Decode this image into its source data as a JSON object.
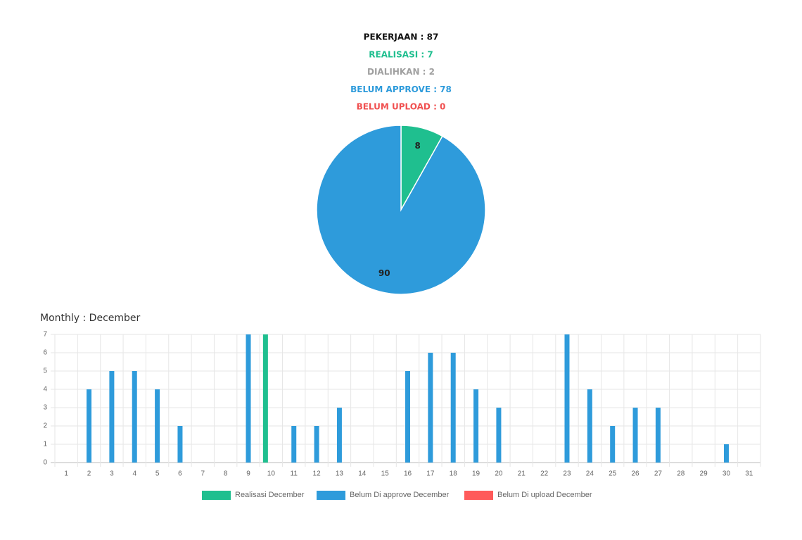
{
  "header": {
    "lines": [
      {
        "text": "PEKERJAAN : 87",
        "color": "#111111"
      },
      {
        "text": "REALISASI : 7",
        "color": "#1fbf8f"
      },
      {
        "text": "DIALIHKAN : 2",
        "color": "#a0a0a0"
      },
      {
        "text": "BELUM APPROVE : 78",
        "color": "#2e9bdb"
      },
      {
        "text": "BELUM UPLOAD : 0",
        "color": "#f05050"
      }
    ]
  },
  "chart_data": [
    {
      "type": "pie",
      "values": [
        8,
        90
      ],
      "colors": [
        "#1fbf8f",
        "#2e9bdb"
      ]
    },
    {
      "type": "bar",
      "title": "Monthly : December",
      "categories": [
        "1",
        "2",
        "3",
        "4",
        "5",
        "6",
        "7",
        "8",
        "9",
        "10",
        "11",
        "12",
        "13",
        "14",
        "15",
        "16",
        "17",
        "18",
        "19",
        "20",
        "21",
        "22",
        "23",
        "24",
        "25",
        "26",
        "27",
        "28",
        "29",
        "30",
        "31"
      ],
      "series": [
        {
          "name": "Realisasi December",
          "color": "#1fbf8f",
          "values": [
            0,
            0,
            0,
            0,
            0,
            0,
            0,
            0,
            0,
            7,
            0,
            0,
            0,
            0,
            0,
            0,
            0,
            0,
            0,
            0,
            0,
            0,
            0,
            0,
            0,
            0,
            0,
            0,
            0,
            0,
            0
          ]
        },
        {
          "name": "Belum Di approve December",
          "color": "#2e9bdb",
          "values": [
            0,
            4,
            5,
            5,
            4,
            2,
            0,
            0,
            7,
            0,
            2,
            2,
            3,
            0,
            0,
            5,
            6,
            6,
            4,
            3,
            0,
            0,
            7,
            4,
            2,
            3,
            3,
            0,
            0,
            1,
            0
          ]
        },
        {
          "name": "Belum Di upload December",
          "color": "#ff5a5a",
          "values": [
            0,
            0,
            0,
            0,
            0,
            0,
            0,
            0,
            0,
            0,
            0,
            0,
            0,
            0,
            0,
            0,
            0,
            0,
            0,
            0,
            0,
            0,
            0,
            0,
            0,
            0,
            0,
            0,
            0,
            0,
            0
          ]
        }
      ],
      "ylim": [
        0,
        7
      ],
      "yticks": [
        0,
        1,
        2,
        3,
        4,
        5,
        6,
        7
      ],
      "grid": true,
      "legend": "bottom"
    }
  ]
}
